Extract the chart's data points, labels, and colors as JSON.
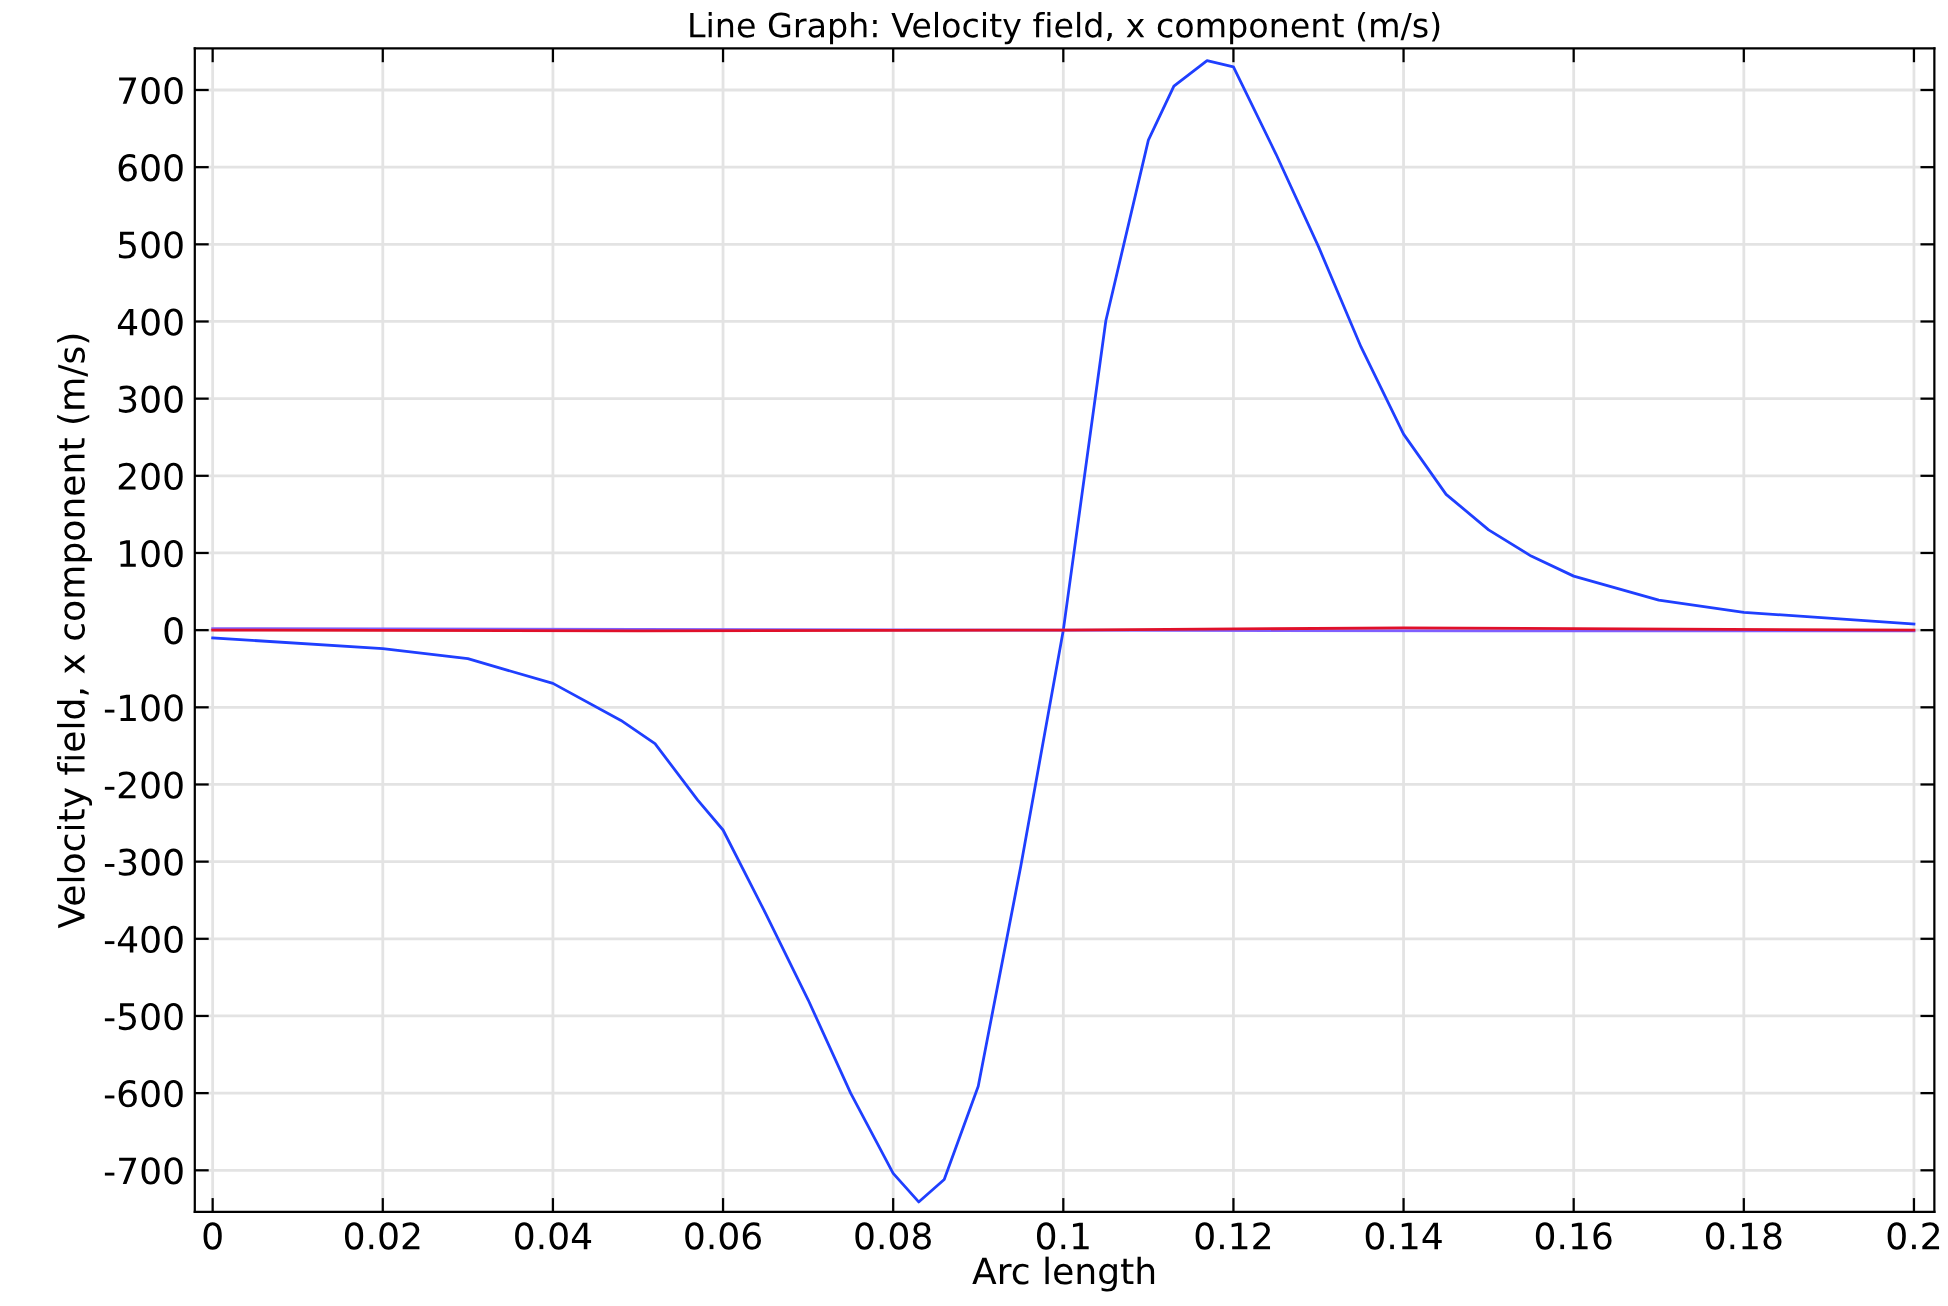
{
  "chart_data": {
    "type": "line",
    "title": "Line Graph: Velocity field, x component (m/s)",
    "xlabel": "Arc length",
    "ylabel": "Velocity field, x component (m/s)",
    "xlim": [
      -0.0021,
      0.2024
    ],
    "ylim": [
      -754,
      754
    ],
    "xticks": [
      0,
      0.02,
      0.04,
      0.06,
      0.08,
      0.1,
      0.12,
      0.14,
      0.16,
      0.18,
      0.2
    ],
    "yticks": [
      -700,
      -600,
      -500,
      -400,
      -300,
      -200,
      -100,
      0,
      100,
      200,
      300,
      400,
      500,
      600,
      700
    ],
    "grid": true,
    "marker": "none",
    "line_style": "solid",
    "series": [
      {
        "color": "#1f3fff",
        "x": [
          0,
          0.02,
          0.03,
          0.04,
          0.048,
          0.052,
          0.057,
          0.06,
          0.065,
          0.07,
          0.075,
          0.08,
          0.083,
          0.086,
          0.09,
          0.095,
          0.1,
          0.105,
          0.11,
          0.113,
          0.1169,
          0.12,
          0.125,
          0.13,
          0.135,
          0.14,
          0.145,
          0.15,
          0.155,
          0.16,
          0.17,
          0.18,
          0.2
        ],
        "values": [
          -10,
          -24,
          -37,
          -69,
          -117,
          -147,
          -220,
          -259,
          -367,
          -479,
          -600,
          -704,
          -741,
          -712,
          -591,
          -306,
          0,
          401,
          635,
          705,
          738,
          730,
          617,
          497,
          367,
          254,
          176,
          130,
          96,
          70,
          39,
          23,
          8
        ]
      },
      {
        "color": "#7f5fff",
        "x": [
          0,
          0.05,
          0.1,
          0.15,
          0.2
        ],
        "values": [
          2,
          1,
          0,
          -1,
          -1
        ]
      },
      {
        "color": "#e0102a",
        "x": [
          0,
          0.05,
          0.1,
          0.14,
          0.2
        ],
        "values": [
          0,
          -1,
          0,
          3,
          0
        ]
      }
    ]
  }
}
